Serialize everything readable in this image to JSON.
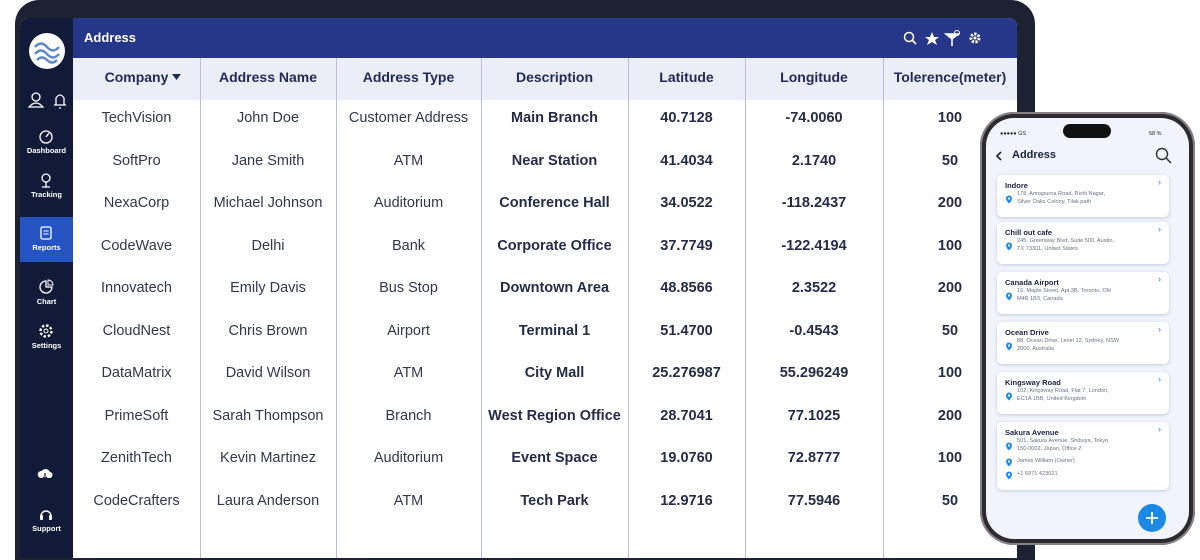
{
  "laptop": {
    "sidebar": {
      "items": [
        "Dashboard",
        "Tracking",
        "Reports",
        "Chart",
        "Settings",
        "Support"
      ]
    },
    "header": {
      "title": "Address"
    },
    "table": {
      "columns": [
        "Company",
        "Address Name",
        "Address Type",
        "Description",
        "Latitude",
        "Longitude",
        "Tolerence(meter)"
      ],
      "rows": [
        [
          "TechVision",
          "John Doe",
          "Customer Address",
          "Main Branch",
          "40.7128",
          "-74.0060",
          "100"
        ],
        [
          "SoftPro",
          "Jane Smith",
          "ATM",
          "Near Station",
          "41.4034",
          "2.1740",
          "50"
        ],
        [
          "NexaCorp",
          "Michael Johnson",
          "Auditorium",
          "Conference Hall",
          "34.0522",
          "-118.2437",
          "200"
        ],
        [
          "CodeWave",
          "Delhi",
          "Bank",
          "Corporate Office",
          "37.7749",
          "-122.4194",
          "100"
        ],
        [
          "Innovatech",
          "Emily Davis",
          "Bus Stop",
          "Downtown Area",
          "48.8566",
          "2.3522",
          "200"
        ],
        [
          "CloudNest",
          "Chris Brown",
          "Airport",
          "Terminal 1",
          "51.4700",
          "-0.4543",
          "50"
        ],
        [
          "DataMatrix",
          "David Wilson",
          "ATM",
          "City Mall",
          "25.276987",
          "55.296249",
          "100"
        ],
        [
          "PrimeSoft",
          "Sarah Thompson",
          "Branch",
          "West Region Office",
          "28.7041",
          "77.1025",
          "200"
        ],
        [
          "ZenithTech",
          "Kevin Martinez",
          "Auditorium",
          "Event Space",
          "19.0760",
          "72.8777",
          "100"
        ],
        [
          "CodeCrafters",
          "Laura Anderson",
          "ATM",
          "Tech Park",
          "12.9716",
          "77.5946",
          "50"
        ]
      ]
    }
  },
  "phone": {
    "status": {
      "carrier": "●●●●● GS",
      "battery": "58 %"
    },
    "title": "Address",
    "cards": [
      {
        "name": "Indore",
        "address": [
          "178, Annapurna Road, Rishi Nagar,",
          "Silver Oaks Colony, Tilak path"
        ]
      },
      {
        "name": "Chill out cafe",
        "address": [
          "245, Greenway Blvd, Suite 500, Austin,",
          "TX 73301, United States"
        ]
      },
      {
        "name": "Canada Airport",
        "address": [
          "16, Maple Street, Apt 3B, Toronto, ON",
          "M4B 1B3, Canada"
        ]
      },
      {
        "name": "Ocean Drive",
        "address": [
          "88, Ocean Drive, Level 12, Sydney, NSW",
          "2000, Australia"
        ]
      },
      {
        "name": "Kingsway Road",
        "address": [
          "102, Kingsway Road, Flat 7, London,",
          "EC1A 1BB, United Kingdom"
        ]
      },
      {
        "name": "Sakura Avenue",
        "address": [
          "501, Sakura Avenue, Shibuya, Tokyo",
          "150-0002, Japan, Office 2"
        ],
        "owner": "James William (Owner)",
        "phone": "+1 6971 423021"
      }
    ]
  }
}
